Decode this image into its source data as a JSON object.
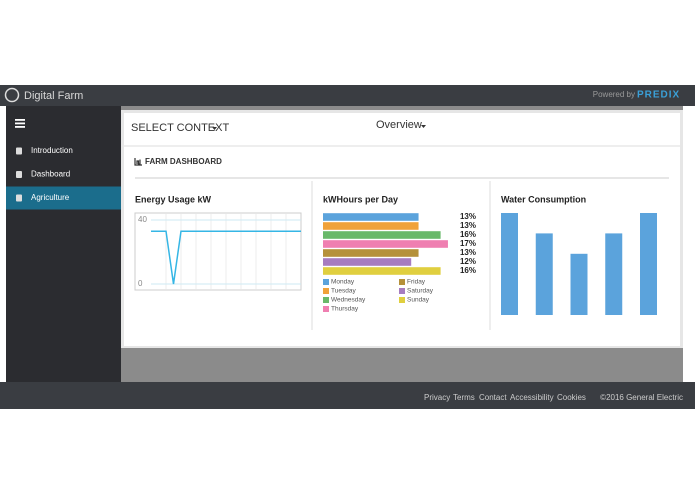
{
  "header": {
    "brand": "Digital Farm",
    "powered_by": "Powered by",
    "predix": "PREDIX"
  },
  "sidebar": {
    "items": [
      "Introduction",
      "Dashboard",
      "Agriculture"
    ],
    "active": 2
  },
  "toolbar": {
    "context": "SELECT CONTEXT",
    "view": "Overview"
  },
  "section_title": "FARM DASHBOARD",
  "chart_data": [
    {
      "type": "line",
      "title": "Energy Usage kW",
      "color": "#35b6e5",
      "values": [
        33,
        33,
        33,
        0,
        33,
        33,
        33,
        33,
        33,
        33,
        33,
        33,
        33,
        33,
        33,
        33,
        33,
        33,
        33,
        33,
        33
      ],
      "ylim": [
        0,
        40
      ],
      "yticks": [
        0,
        40
      ],
      "grid": true
    },
    {
      "type": "hbar",
      "title": "kWHours per Day",
      "categories": [
        "Monday",
        "Tuesday",
        "Wednesday",
        "Thursday",
        "Friday",
        "Saturday",
        "Sunday"
      ],
      "values": [
        13,
        13,
        16,
        17,
        13,
        12,
        16
      ],
      "value_labels": [
        "13%",
        "13%",
        "16%",
        "17%",
        "13%",
        "12%",
        "16%"
      ],
      "colors": [
        "#5ba3dc",
        "#f0a23a",
        "#69b96a",
        "#ef7fb1",
        "#b5913a",
        "#a67cc0",
        "#e0cf3f"
      ]
    },
    {
      "type": "bar",
      "title": "Water Consumption",
      "color": "#5ba3dc",
      "values": [
        5,
        4,
        3,
        4,
        5
      ]
    }
  ],
  "footer": {
    "links": [
      "Privacy",
      "Terms",
      "Contact",
      "Accessibility",
      "Cookies"
    ],
    "copyright": "©2016 General Electric"
  }
}
